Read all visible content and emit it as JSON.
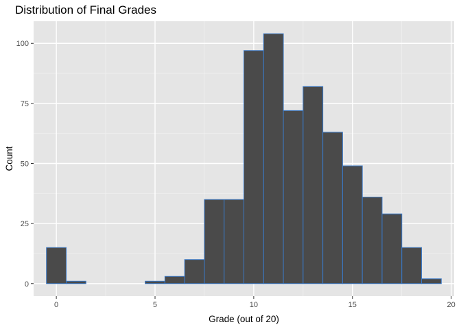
{
  "chart_data": {
    "type": "bar",
    "title": "Distribution of Final Grades",
    "xlabel": "Grade (out of 20)",
    "ylabel": "Count",
    "xlim": [
      -1.15,
      20.15
    ],
    "ylim": [
      -5.2,
      109.2
    ],
    "xticks": [
      0,
      5,
      10,
      15,
      20
    ],
    "yticks": [
      0,
      25,
      50,
      75,
      100
    ],
    "grid": true,
    "bin_width": 1,
    "bin_centers": [
      0,
      1,
      2,
      3,
      4,
      5,
      6,
      7,
      8,
      9,
      10,
      11,
      12,
      13,
      14,
      15,
      16,
      17,
      18,
      19
    ],
    "values": [
      15,
      1,
      0,
      0,
      0,
      1,
      3,
      10,
      35,
      35,
      97,
      104,
      72,
      82,
      63,
      49,
      36,
      29,
      15,
      2
    ],
    "colors": {
      "panel": "#e5e5e5",
      "grid_major": "#ffffff",
      "grid_minor": "#f2f2f2",
      "bar_fill": "#4a4a4a",
      "bar_stroke": "#3b78c4",
      "tick": "#333333"
    }
  }
}
